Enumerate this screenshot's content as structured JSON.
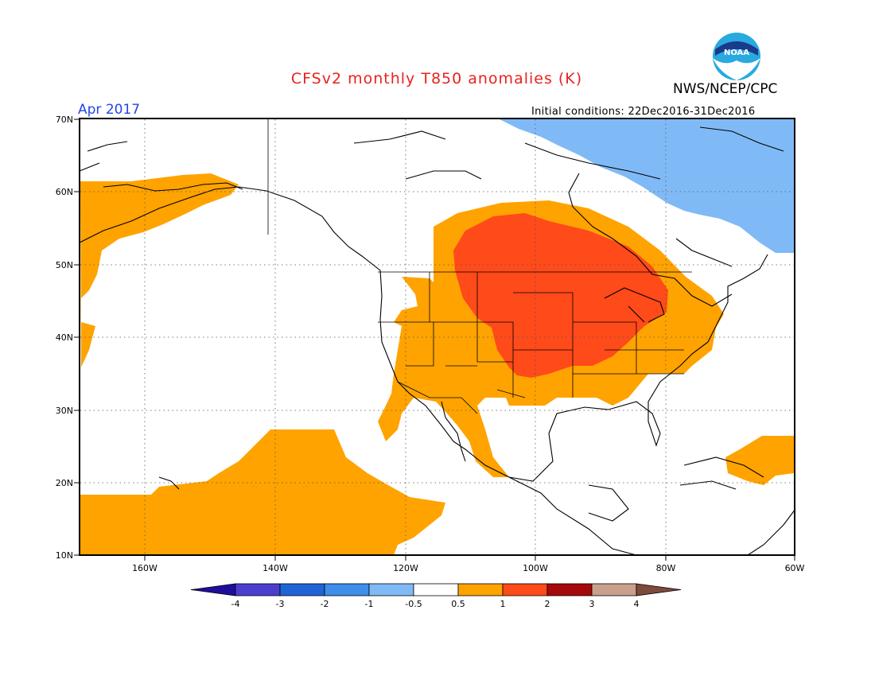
{
  "title": "CFSv2 monthly T850 anomalies (K)",
  "organization": "NWS/NCEP/CPC",
  "logo_text": "NOAA",
  "valid_month": "Apr 2017",
  "initial_conditions": "Initial conditions: 22Dec2016-31Dec2016",
  "map": {
    "lat_labels": [
      "70N",
      "60N",
      "50N",
      "40N",
      "30N",
      "20N",
      "10N"
    ],
    "lon_labels": [
      "160W",
      "140W",
      "120W",
      "100W",
      "80W",
      "60W"
    ]
  },
  "colorbar": {
    "labels": [
      "-4",
      "-3",
      "-2",
      "-1",
      "-0.5",
      "0.5",
      "1",
      "2",
      "3",
      "4"
    ],
    "colors": [
      "#1f0e9c",
      "#4b3fcf",
      "#1e64d6",
      "#3f8eea",
      "#80baf6",
      "#ffffff",
      "#ffa300",
      "#ff4a1a",
      "#a50a0a",
      "#c8a08c",
      "#7d4a3c"
    ]
  },
  "anomaly_colors": {
    "warm_0.5_1": "#ffa300",
    "warm_1_2": "#ff4a1a",
    "cool_-0.5_-1": "#80baf6"
  }
}
